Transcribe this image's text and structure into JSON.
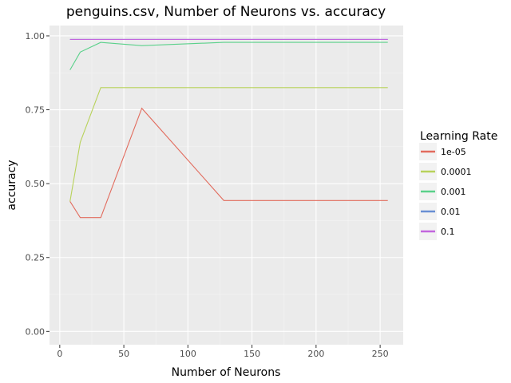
{
  "chart_data": {
    "type": "line",
    "title": "penguins.csv, Number of Neurons vs. accuracy",
    "xlabel": "Number of Neurons",
    "ylabel": "accuracy",
    "xlim": [
      -8,
      268
    ],
    "ylim": [
      -0.045,
      1.035
    ],
    "x_ticks": [
      0,
      50,
      100,
      150,
      200,
      250
    ],
    "x_tick_labels": [
      "0",
      "50",
      "100",
      "150",
      "200",
      "250"
    ],
    "y_ticks": [
      0,
      0.25,
      0.5,
      0.75,
      1.0
    ],
    "y_tick_labels": [
      "0.00",
      "0.25",
      "0.50",
      "0.75",
      "1.00"
    ],
    "grid": true,
    "legend": {
      "title": "Learning Rate",
      "position": "right"
    },
    "x": [
      8,
      16,
      32,
      64,
      128,
      256
    ],
    "series": [
      {
        "name": "1e-05",
        "color": "#e26c5e",
        "values": [
          0.44,
          0.385,
          0.385,
          0.755,
          0.443,
          0.443
        ]
      },
      {
        "name": "0.0001",
        "color": "#b8d25b",
        "values": [
          0.44,
          0.64,
          0.825,
          0.825,
          0.825,
          0.825
        ]
      },
      {
        "name": "0.001",
        "color": "#5ad18a",
        "values": [
          0.885,
          0.945,
          0.978,
          0.967,
          0.978,
          0.978
        ]
      },
      {
        "name": "0.01",
        "color": "#6a8fd4",
        "values": [
          0.988,
          0.988,
          0.988,
          0.988,
          0.988,
          0.988
        ]
      },
      {
        "name": "0.1",
        "color": "#c266de",
        "values": [
          0.988,
          0.988,
          0.988,
          0.988,
          0.988,
          0.988
        ]
      }
    ]
  }
}
